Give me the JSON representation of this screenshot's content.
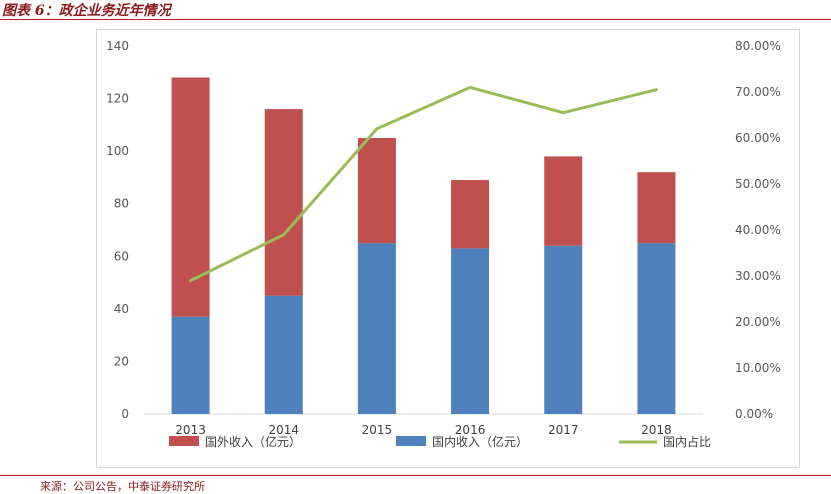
{
  "header": {
    "title": "图表 6：政企业务近年情况"
  },
  "footer": {
    "source": "来源：公司公告，中泰证券研究所"
  },
  "chart_data": {
    "type": "bar",
    "stacked": true,
    "categories": [
      "2013",
      "2014",
      "2015",
      "2016",
      "2017",
      "2018"
    ],
    "series": [
      {
        "name": "国内收入（亿元）",
        "type": "bar",
        "axis": "left",
        "color": "#4f81bd",
        "values": [
          37,
          45,
          65,
          63,
          64,
          65
        ]
      },
      {
        "name": "国外收入（亿元）",
        "type": "bar",
        "axis": "left",
        "color": "#c0504d",
        "values": [
          91,
          71,
          40,
          26,
          34,
          27
        ]
      },
      {
        "name": "国内占比",
        "type": "line",
        "axis": "right",
        "color": "#9bbb59",
        "values": [
          0.29,
          0.39,
          0.62,
          0.71,
          0.655,
          0.705
        ]
      }
    ],
    "left_axis": {
      "min": 0,
      "max": 140,
      "ticks": [
        "0",
        "20",
        "40",
        "60",
        "80",
        "100",
        "120",
        "140"
      ]
    },
    "right_axis": {
      "min": 0,
      "max": 0.8,
      "ticks": [
        "0.00%",
        "10.00%",
        "20.00%",
        "30.00%",
        "40.00%",
        "50.00%",
        "60.00%",
        "70.00%",
        "80.00%"
      ]
    },
    "legend": {
      "position": "bottom",
      "entries": [
        "国外收入（亿元）",
        "国内收入（亿元）",
        "国内占比"
      ]
    },
    "grid": false
  }
}
